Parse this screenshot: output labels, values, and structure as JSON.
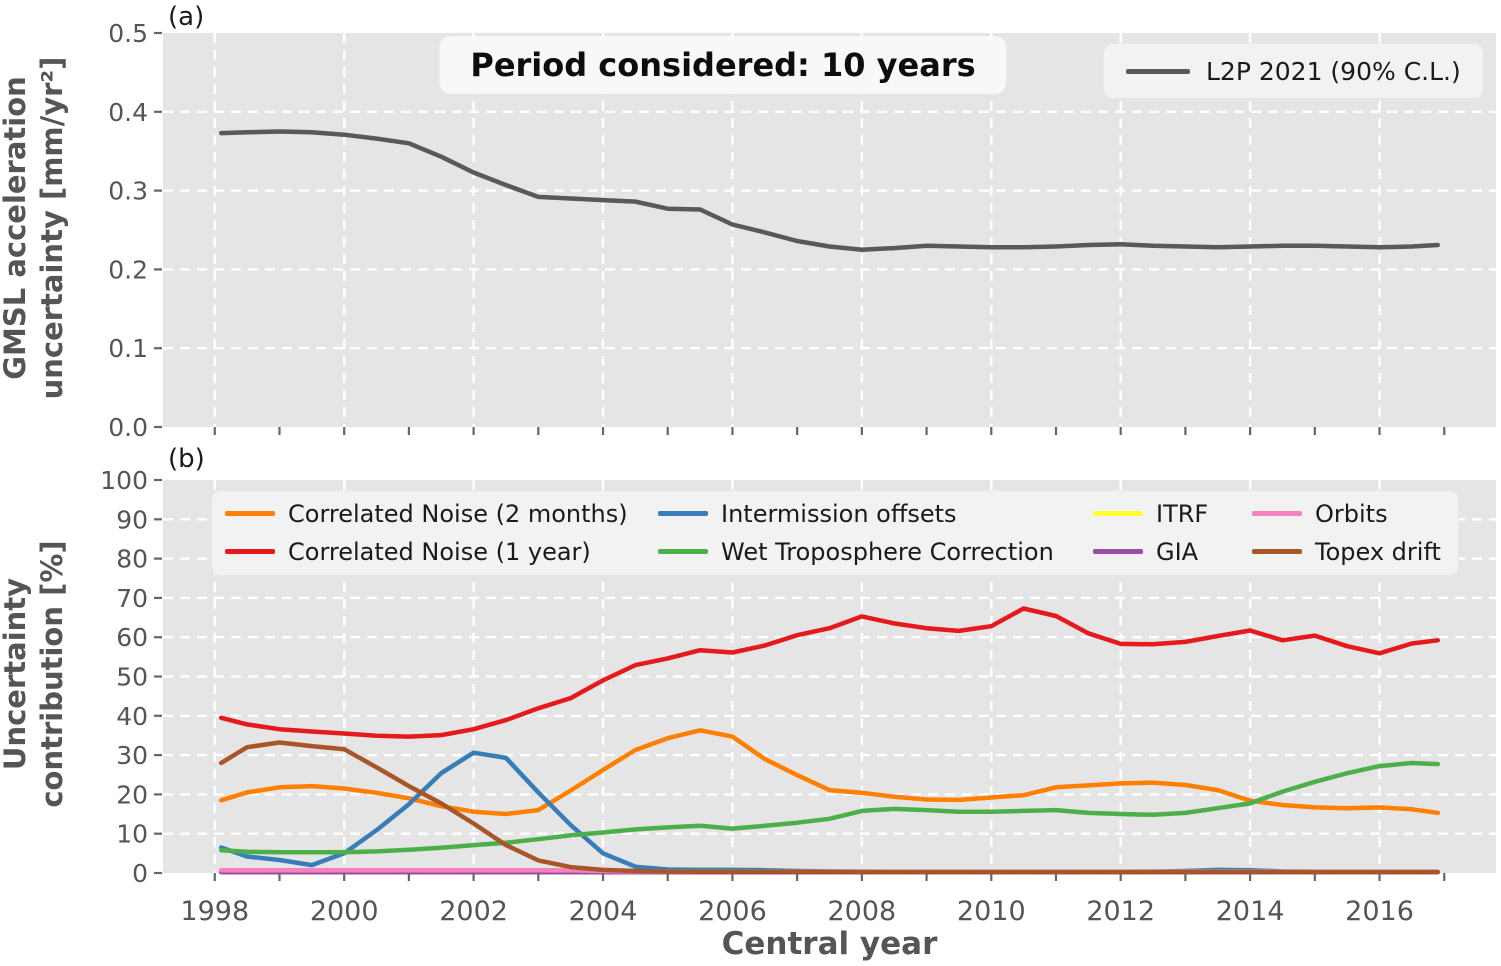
{
  "figure": {
    "panel_a_label": "(a)",
    "panel_b_label": "(b)",
    "title": "Period considered: 10 years",
    "xlabel": "Central year",
    "ylabel_a": "GMSL acceleration\nuncertainty [mm/yr²]",
    "ylabel_b": "Uncertainty\ncontribution [%]"
  },
  "colors": {
    "figure_background": "#ffffff",
    "plot_background": "#e5e5e5",
    "grid": "#ffffff",
    "tick_label": "#555555",
    "axis_label": "#555555",
    "legend_background": "#f2f2f2",
    "l2p_gray": "#595959"
  },
  "chart_data": [
    {
      "type": "line",
      "panel": "a",
      "title": "Period considered: 10 years",
      "ylabel": "GMSL acceleration uncertainty [mm/yr²]",
      "ylim": [
        0,
        0.5
      ],
      "yticks": [
        "0.0",
        "0.1",
        "0.2",
        "0.3",
        "0.4",
        "0.5"
      ],
      "grid": "white dashed",
      "legend_position": "upper right",
      "x": [
        1998.1,
        1998.5,
        1999,
        1999.5,
        2000,
        2000.5,
        2001,
        2001.5,
        2002,
        2002.5,
        2003,
        2003.5,
        2004,
        2004.5,
        2005,
        2005.5,
        2006,
        2006.5,
        2007,
        2007.5,
        2008,
        2008.5,
        2009,
        2009.5,
        2010,
        2010.5,
        2011,
        2011.5,
        2012,
        2012.5,
        2013,
        2013.5,
        2014,
        2014.5,
        2015,
        2015.5,
        2016,
        2016.5,
        2016.9
      ],
      "series": [
        {
          "name": "L2P 2021 (90% C.L.)",
          "color": "#595959",
          "values": [
            0.373,
            0.374,
            0.375,
            0.374,
            0.371,
            0.366,
            0.36,
            0.343,
            0.323,
            0.307,
            0.292,
            0.29,
            0.288,
            0.286,
            0.277,
            0.276,
            0.257,
            0.247,
            0.236,
            0.229,
            0.225,
            0.227,
            0.23,
            0.229,
            0.228,
            0.228,
            0.229,
            0.231,
            0.232,
            0.23,
            0.229,
            0.228,
            0.229,
            0.23,
            0.23,
            0.229,
            0.228,
            0.229,
            0.231
          ]
        }
      ]
    },
    {
      "type": "line",
      "panel": "b",
      "ylabel": "Uncertainty contribution [%]",
      "xlabel": "Central year",
      "ylim": [
        0,
        100
      ],
      "yticks": [
        "0",
        "10",
        "20",
        "30",
        "40",
        "50",
        "60",
        "70",
        "80",
        "90",
        "100"
      ],
      "xticks": [
        "1998",
        "2000",
        "2002",
        "2004",
        "2006",
        "2008",
        "2010",
        "2012",
        "2014",
        "2016"
      ],
      "grid": "white dashed",
      "legend_position": "upper left",
      "x": [
        1998.1,
        1998.5,
        1999,
        1999.5,
        2000,
        2000.5,
        2001,
        2001.5,
        2002,
        2002.5,
        2003,
        2003.5,
        2004,
        2004.5,
        2005,
        2005.5,
        2006,
        2006.5,
        2007,
        2007.5,
        2008,
        2008.5,
        2009,
        2009.5,
        2010,
        2010.5,
        2011,
        2011.5,
        2012,
        2012.5,
        2013,
        2013.5,
        2014,
        2014.5,
        2015,
        2015.5,
        2016,
        2016.5,
        2016.9
      ],
      "series": [
        {
          "name": "Correlated Noise (2 months)",
          "color": "#ff7f00",
          "values": [
            18.5,
            20.5,
            21.8,
            22.1,
            21.5,
            20.4,
            19.0,
            17.0,
            15.6,
            15.0,
            16.0,
            21.0,
            26.2,
            31.3,
            34.3,
            36.3,
            34.7,
            29.0,
            24.9,
            21.1,
            20.4,
            19.4,
            18.7,
            18.6,
            19.2,
            19.8,
            21.8,
            22.3,
            22.8,
            23.0,
            22.4,
            21.1,
            18.4,
            17.3,
            16.7,
            16.5,
            16.7,
            16.2,
            15.3
          ]
        },
        {
          "name": "Correlated Noise (1 year)",
          "color": "#e41a1c",
          "values": [
            39.5,
            37.8,
            36.6,
            36.0,
            35.5,
            34.9,
            34.7,
            35.1,
            36.6,
            38.9,
            41.9,
            44.5,
            49.0,
            52.9,
            54.6,
            56.7,
            56.1,
            57.9,
            60.5,
            62.3,
            65.3,
            63.5,
            62.3,
            61.6,
            62.8,
            67.3,
            65.4,
            61.0,
            58.3,
            58.2,
            58.8,
            60.3,
            61.7,
            59.2,
            60.4,
            57.7,
            55.9,
            58.4,
            59.2
          ]
        },
        {
          "name": "Intermission offsets",
          "color": "#377eb8",
          "values": [
            6.5,
            4.2,
            3.3,
            2.0,
            5.0,
            10.9,
            17.5,
            25.4,
            30.6,
            29.3,
            20.5,
            12.2,
            5.0,
            1.6,
            0.9,
            0.8,
            0.8,
            0.7,
            0.5,
            0.4,
            0.35,
            0.3,
            0.3,
            0.3,
            0.3,
            0.3,
            0.3,
            0.3,
            0.3,
            0.35,
            0.5,
            0.8,
            0.7,
            0.4,
            0.3,
            0.3,
            0.3,
            0.3,
            0.3
          ]
        },
        {
          "name": "Wet Troposphere Correction",
          "color": "#4daf4a",
          "values": [
            5.8,
            5.4,
            5.3,
            5.3,
            5.3,
            5.5,
            5.9,
            6.4,
            7.1,
            7.7,
            8.6,
            9.6,
            10.3,
            11.1,
            11.6,
            12.0,
            11.3,
            12.0,
            12.8,
            13.8,
            15.8,
            16.3,
            16.0,
            15.6,
            15.6,
            15.8,
            16.0,
            15.3,
            15.0,
            14.8,
            15.3,
            16.5,
            17.7,
            20.7,
            23.2,
            25.4,
            27.2,
            28.0,
            27.7
          ]
        },
        {
          "name": "ITRF",
          "color": "#ffff33",
          "values": [
            0.35,
            0.35,
            0.35,
            0.35,
            0.35,
            0.35,
            0.35,
            0.35,
            0.35,
            0.35,
            0.35,
            0.35,
            0.35,
            0.35,
            0.35,
            0.35,
            0.35,
            0.35,
            0.35,
            0.35,
            0.35,
            0.35,
            0.35,
            0.35,
            0.35,
            0.35,
            0.35,
            0.35,
            0.35,
            0.35,
            0.35,
            0.35,
            0.35,
            0.35,
            0.35,
            0.35,
            0.35,
            0.35,
            0.35
          ]
        },
        {
          "name": "GIA",
          "color": "#984ea3",
          "values": [
            0.2,
            0.2,
            0.2,
            0.2,
            0.2,
            0.2,
            0.2,
            0.2,
            0.2,
            0.2,
            0.2,
            0.2,
            0.2,
            0.2,
            0.2,
            0.2,
            0.2,
            0.2,
            0.2,
            0.2,
            0.2,
            0.2,
            0.2,
            0.2,
            0.2,
            0.2,
            0.2,
            0.2,
            0.2,
            0.2,
            0.2,
            0.2,
            0.2,
            0.2,
            0.2,
            0.2,
            0.2,
            0.2,
            0.2
          ]
        },
        {
          "name": "Orbits",
          "color": "#f781bf",
          "values": [
            0.7,
            0.7,
            0.7,
            0.7,
            0.7,
            0.7,
            0.7,
            0.7,
            0.7,
            0.7,
            0.7,
            0.7,
            0.5,
            0.4,
            0.3,
            0.3,
            0.3,
            0.3,
            0.3,
            0.3,
            0.3,
            0.3,
            0.3,
            0.3,
            0.3,
            0.3,
            0.3,
            0.3,
            0.3,
            0.3,
            0.3,
            0.3,
            0.3,
            0.3,
            0.3,
            0.3,
            0.3,
            0.3,
            0.3
          ]
        },
        {
          "name": "Topex drift",
          "color": "#a65628",
          "values": [
            28.0,
            32.0,
            33.2,
            32.3,
            31.5,
            26.9,
            22.1,
            17.7,
            12.6,
            7.1,
            3.2,
            1.5,
            0.8,
            0.5,
            0.35,
            0.3,
            0.3,
            0.3,
            0.3,
            0.25,
            0.25,
            0.25,
            0.25,
            0.25,
            0.25,
            0.25,
            0.25,
            0.25,
            0.25,
            0.25,
            0.25,
            0.25,
            0.25,
            0.25,
            0.25,
            0.25,
            0.25,
            0.25,
            0.25
          ]
        }
      ]
    }
  ]
}
